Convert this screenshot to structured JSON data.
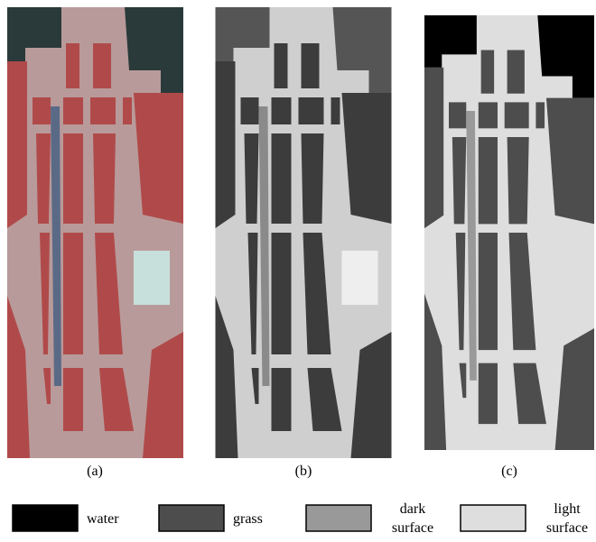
{
  "panels": [
    {
      "label": "(a)"
    },
    {
      "label": "(b)"
    },
    {
      "label": "(c)"
    }
  ],
  "legend": [
    {
      "lines": [
        "water"
      ],
      "color": "#000000"
    },
    {
      "lines": [
        "grass"
      ],
      "color": "#4d4d4d"
    },
    {
      "lines": [
        "dark",
        "surface"
      ],
      "color": "#999999"
    },
    {
      "lines": [
        "light",
        "surface"
      ],
      "color": "#dedede"
    }
  ]
}
